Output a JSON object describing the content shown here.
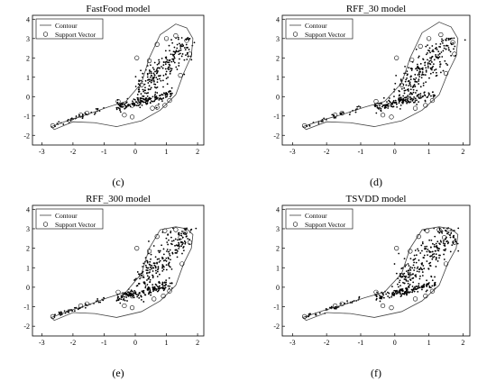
{
  "figure": {
    "panels": [
      {
        "id": "c",
        "title": "FastFood model",
        "caption": "(c)"
      },
      {
        "id": "d",
        "title": "RFF_30 model",
        "caption": "(d)"
      },
      {
        "id": "e",
        "title": "RFF_300 model",
        "caption": "(e)"
      },
      {
        "id": "f",
        "title": "TSVDD model",
        "caption": "(f)"
      }
    ]
  },
  "chart_data": [
    {
      "type": "scatter",
      "title": "FastFood model",
      "caption": "(c)",
      "xlim": [
        -3.3,
        2.2
      ],
      "ylim": [
        -2.5,
        4.2
      ],
      "xticks": [
        -3,
        -2,
        -1,
        0,
        1,
        2
      ],
      "yticks": [
        -2,
        -1,
        0,
        1,
        2,
        3,
        4
      ],
      "grid": false,
      "legend_position": "top-left",
      "series": [
        {
          "name": "Contour",
          "kind": "line",
          "points": [
            [
              -2.7,
              -1.55
            ],
            [
              -2.1,
              -1.2
            ],
            [
              -1.5,
              -0.9
            ],
            [
              -0.9,
              -0.55
            ],
            [
              -0.3,
              -0.25
            ],
            [
              0.2,
              0.7
            ],
            [
              0.45,
              2.0
            ],
            [
              0.8,
              3.2
            ],
            [
              1.3,
              3.75
            ],
            [
              1.65,
              3.55
            ],
            [
              1.85,
              3.0
            ],
            [
              1.8,
              2.1
            ],
            [
              1.55,
              1.2
            ],
            [
              1.3,
              0.1
            ],
            [
              0.8,
              -0.7
            ],
            [
              0.2,
              -1.25
            ],
            [
              -0.6,
              -1.55
            ],
            [
              -1.3,
              -1.35
            ],
            [
              -2.0,
              -1.3
            ],
            [
              -2.6,
              -1.7
            ],
            [
              -2.7,
              -1.55
            ]
          ]
        },
        {
          "name": "Support Vector",
          "kind": "marker",
          "points": [
            [
              -2.65,
              -1.5
            ],
            [
              -1.75,
              -0.95
            ],
            [
              -1.55,
              -0.85
            ],
            [
              -0.55,
              -0.25
            ],
            [
              -0.1,
              -0.45
            ],
            [
              0.2,
              0.6
            ],
            [
              0.45,
              1.85
            ],
            [
              0.7,
              2.7
            ],
            [
              1.0,
              3.0
            ],
            [
              1.3,
              3.15
            ],
            [
              1.65,
              2.9
            ],
            [
              1.75,
              2.2
            ],
            [
              1.45,
              1.1
            ],
            [
              1.1,
              -0.2
            ],
            [
              0.95,
              -0.45
            ],
            [
              0.7,
              -0.55
            ],
            [
              0.55,
              -0.6
            ],
            [
              -0.1,
              -1.05
            ],
            [
              -0.35,
              -0.95
            ],
            [
              0.05,
              2.0
            ]
          ]
        }
      ]
    },
    {
      "type": "scatter",
      "title": "RFF_30 model",
      "caption": "(d)",
      "xlim": [
        -3.3,
        2.2
      ],
      "ylim": [
        -2.5,
        4.2
      ],
      "xticks": [
        -3,
        -2,
        -1,
        0,
        1,
        2
      ],
      "yticks": [
        -2,
        -1,
        0,
        1,
        2,
        3,
        4
      ],
      "grid": false,
      "legend_position": "top-left",
      "series": [
        {
          "name": "Contour",
          "kind": "line",
          "points": [
            [
              -2.7,
              -1.55
            ],
            [
              -2.1,
              -1.2
            ],
            [
              -1.5,
              -0.9
            ],
            [
              -0.9,
              -0.55
            ],
            [
              -0.3,
              -0.25
            ],
            [
              0.2,
              0.7
            ],
            [
              0.45,
              2.0
            ],
            [
              0.8,
              3.3
            ],
            [
              1.3,
              3.85
            ],
            [
              1.65,
              3.6
            ],
            [
              1.85,
              3.0
            ],
            [
              1.8,
              2.1
            ],
            [
              1.55,
              1.2
            ],
            [
              1.3,
              0.1
            ],
            [
              0.8,
              -0.7
            ],
            [
              0.2,
              -1.25
            ],
            [
              -0.6,
              -1.55
            ],
            [
              -1.3,
              -1.35
            ],
            [
              -2.0,
              -1.3
            ],
            [
              -2.6,
              -1.7
            ],
            [
              -2.7,
              -1.55
            ]
          ]
        },
        {
          "name": "Support Vector",
          "kind": "marker",
          "points": [
            [
              -2.65,
              -1.5
            ],
            [
              -1.75,
              -0.95
            ],
            [
              -1.55,
              -0.85
            ],
            [
              -0.55,
              -0.25
            ],
            [
              0.2,
              0.6
            ],
            [
              0.5,
              1.9
            ],
            [
              0.75,
              2.6
            ],
            [
              1.0,
              3.0
            ],
            [
              1.35,
              3.2
            ],
            [
              1.7,
              2.8
            ],
            [
              1.75,
              2.2
            ],
            [
              1.5,
              1.2
            ],
            [
              1.1,
              -0.2
            ],
            [
              0.9,
              -0.45
            ],
            [
              0.6,
              -0.6
            ],
            [
              -0.1,
              -1.05
            ],
            [
              -0.35,
              -0.95
            ],
            [
              0.05,
              2.0
            ]
          ]
        }
      ]
    },
    {
      "type": "scatter",
      "title": "RFF_300 model",
      "caption": "(e)",
      "xlim": [
        -3.3,
        2.2
      ],
      "ylim": [
        -2.5,
        4.2
      ],
      "xticks": [
        -3,
        -2,
        -1,
        0,
        1,
        2
      ],
      "yticks": [
        -2,
        -1,
        0,
        1,
        2,
        3,
        4
      ],
      "grid": false,
      "legend_position": "top-left",
      "series": [
        {
          "name": "Contour",
          "kind": "line",
          "points": [
            [
              -2.7,
              -1.55
            ],
            [
              -2.1,
              -1.2
            ],
            [
              -1.5,
              -0.9
            ],
            [
              -0.9,
              -0.55
            ],
            [
              -0.3,
              -0.25
            ],
            [
              0.2,
              0.7
            ],
            [
              0.45,
              2.0
            ],
            [
              0.8,
              2.95
            ],
            [
              1.3,
              3.1
            ],
            [
              1.65,
              3.0
            ],
            [
              1.85,
              2.7
            ],
            [
              1.8,
              2.0
            ],
            [
              1.55,
              1.2
            ],
            [
              1.3,
              0.1
            ],
            [
              0.8,
              -0.7
            ],
            [
              0.2,
              -1.25
            ],
            [
              -0.6,
              -1.55
            ],
            [
              -1.3,
              -1.35
            ],
            [
              -2.0,
              -1.3
            ],
            [
              -2.6,
              -1.7
            ],
            [
              -2.7,
              -1.55
            ]
          ]
        },
        {
          "name": "Support Vector",
          "kind": "marker",
          "points": [
            [
              -2.65,
              -1.5
            ],
            [
              -1.75,
              -0.95
            ],
            [
              -1.55,
              -0.85
            ],
            [
              -0.55,
              -0.25
            ],
            [
              -0.1,
              -0.45
            ],
            [
              0.2,
              0.6
            ],
            [
              0.45,
              1.85
            ],
            [
              0.7,
              2.6
            ],
            [
              0.95,
              2.9
            ],
            [
              1.3,
              2.95
            ],
            [
              1.6,
              2.8
            ],
            [
              1.75,
              2.3
            ],
            [
              1.5,
              1.2
            ],
            [
              1.1,
              -0.2
            ],
            [
              0.9,
              -0.45
            ],
            [
              0.6,
              -0.6
            ],
            [
              -0.1,
              -1.05
            ],
            [
              -0.35,
              -0.95
            ],
            [
              0.05,
              2.0
            ],
            [
              1.45,
              2.55
            ]
          ]
        }
      ]
    },
    {
      "type": "scatter",
      "title": "TSVDD model",
      "caption": "(f)",
      "xlim": [
        -3.3,
        2.2
      ],
      "ylim": [
        -2.5,
        4.2
      ],
      "xticks": [
        -3,
        -2,
        -1,
        0,
        1,
        2
      ],
      "yticks": [
        -2,
        -1,
        0,
        1,
        2,
        3,
        4
      ],
      "grid": false,
      "legend_position": "top-left",
      "series": [
        {
          "name": "Contour",
          "kind": "line",
          "points": [
            [
              -2.7,
              -1.55
            ],
            [
              -2.1,
              -1.2
            ],
            [
              -1.5,
              -0.9
            ],
            [
              -0.9,
              -0.55
            ],
            [
              -0.3,
              -0.25
            ],
            [
              0.2,
              0.7
            ],
            [
              0.45,
              2.0
            ],
            [
              0.8,
              2.95
            ],
            [
              1.3,
              3.1
            ],
            [
              1.65,
              3.0
            ],
            [
              1.85,
              2.7
            ],
            [
              1.8,
              2.0
            ],
            [
              1.55,
              1.2
            ],
            [
              1.3,
              0.1
            ],
            [
              0.8,
              -0.7
            ],
            [
              0.2,
              -1.25
            ],
            [
              -0.6,
              -1.55
            ],
            [
              -1.3,
              -1.35
            ],
            [
              -2.0,
              -1.3
            ],
            [
              -2.6,
              -1.7
            ],
            [
              -2.7,
              -1.55
            ]
          ]
        },
        {
          "name": "Support Vector",
          "kind": "marker",
          "points": [
            [
              -2.65,
              -1.5
            ],
            [
              -1.75,
              -0.95
            ],
            [
              -1.55,
              -0.85
            ],
            [
              -0.55,
              -0.25
            ],
            [
              0.2,
              0.6
            ],
            [
              0.45,
              1.85
            ],
            [
              0.7,
              2.6
            ],
            [
              0.95,
              2.9
            ],
            [
              1.3,
              2.95
            ],
            [
              1.6,
              2.8
            ],
            [
              1.75,
              2.3
            ],
            [
              1.5,
              1.2
            ],
            [
              1.1,
              -0.2
            ],
            [
              0.9,
              -0.45
            ],
            [
              0.6,
              -0.6
            ],
            [
              -0.1,
              -1.05
            ],
            [
              -0.35,
              -0.95
            ],
            [
              0.05,
              2.0
            ],
            [
              1.45,
              2.55
            ]
          ]
        }
      ]
    }
  ]
}
